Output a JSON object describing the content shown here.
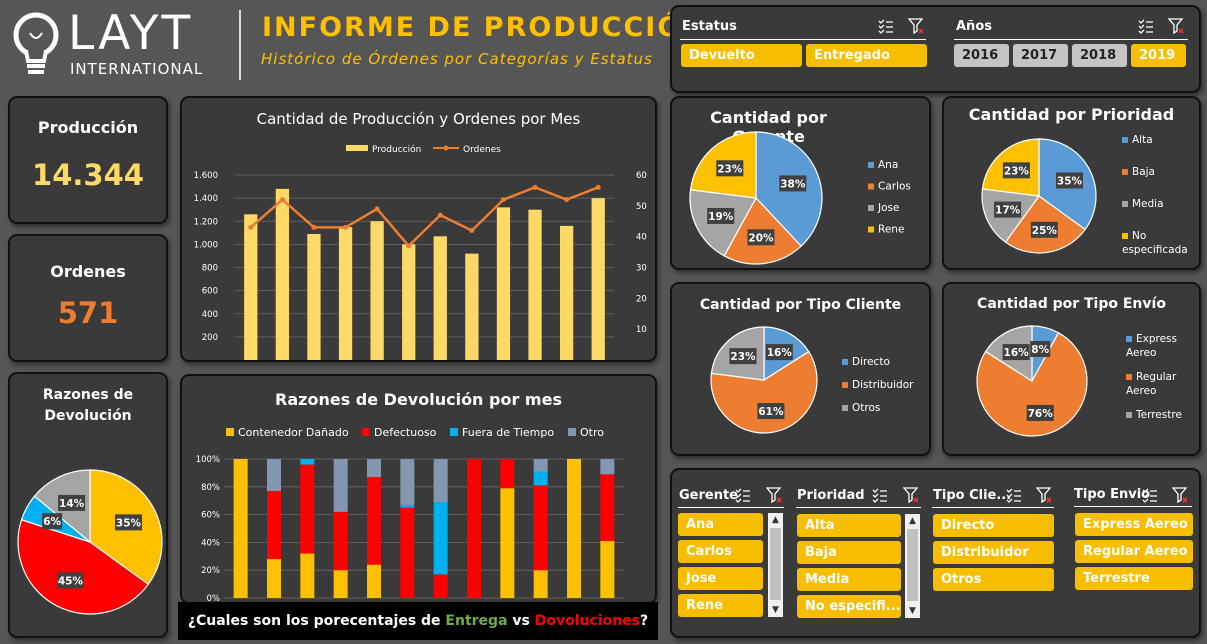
{
  "header": {
    "logo_text": "LAYT",
    "logo_sub": "INTERNATIONAL",
    "title": "INFORME DE PRODUCCIÓN",
    "subtitle": "Histórico de Órdenes por Categorías y Estatus"
  },
  "colors": {
    "yellow": "#ffc000",
    "orange": "#ed7d31",
    "blue": "#5b9bd5",
    "gray": "#a5a5a5",
    "red": "#ff0000",
    "cyan": "#00b0f0",
    "slate": "#8497b0",
    "bar_yellow": "#ffd966",
    "kpi_yellow": "#ffd966",
    "kpi_orange": "#ed7d31"
  },
  "filters": {
    "estatus": {
      "title": "Estatus",
      "items": [
        {
          "label": "Devuelto",
          "on": true
        },
        {
          "label": "Entregado",
          "on": true
        }
      ]
    },
    "anios": {
      "title": "Años",
      "items": [
        {
          "label": "2016",
          "on": false
        },
        {
          "label": "2017",
          "on": false
        },
        {
          "label": "2018",
          "on": false
        },
        {
          "label": "2019",
          "on": true
        }
      ]
    }
  },
  "kpis": {
    "produccion": {
      "label": "Producción",
      "value": "14.344"
    },
    "ordenes": {
      "label": "Ordenes",
      "value": "571"
    }
  },
  "combo_chart": {
    "title": "Cantidad de Producción y Ordenes por Mes",
    "legend_bar": "Producción",
    "legend_line": "Ordenes",
    "y_left_ticks": [
      "1.600",
      "1.400",
      "1.200",
      "1.000",
      "800",
      "600",
      "400",
      "200",
      "-"
    ],
    "y_right_ticks": [
      "60",
      "50",
      "40",
      "30",
      "20",
      "10",
      "-"
    ]
  },
  "chart_data": [
    {
      "type": "bar",
      "title": "Cantidad de Producción y Ordenes por Mes",
      "series": [
        {
          "name": "Producción",
          "values": [
            1260,
            1480,
            1090,
            1150,
            1200,
            1000,
            1070,
            920,
            1320,
            1300,
            1160,
            1400
          ]
        },
        {
          "name": "Ordenes",
          "values": [
            43,
            52,
            43,
            43,
            49,
            37,
            47,
            42,
            52,
            56,
            52,
            56
          ]
        }
      ],
      "ylim_left": [
        0,
        1600
      ],
      "ylim_right": [
        0,
        60
      ]
    },
    {
      "type": "bar",
      "title": "Razones de Devolución por mes",
      "legend": [
        "Contenedor Dañado",
        "Defectuoso",
        "Fuera de Tiempo",
        "Otro"
      ],
      "y_ticks": [
        "100%",
        "80%",
        "60%",
        "40%",
        "20%",
        "0%"
      ],
      "series": [
        {
          "name": "Contenedor Dañado",
          "values": [
            100,
            28,
            32,
            20,
            24,
            0,
            0,
            0,
            79,
            20,
            100,
            41
          ]
        },
        {
          "name": "Defectuoso",
          "values": [
            0,
            49,
            64,
            42,
            63,
            65,
            17,
            100,
            21,
            61,
            0,
            48
          ]
        },
        {
          "name": "Fuera de Tiempo",
          "values": [
            0,
            0,
            4,
            0,
            0,
            2,
            52,
            0,
            0,
            10,
            0,
            0
          ]
        },
        {
          "name": "Otro",
          "values": [
            0,
            23,
            0,
            38,
            13,
            33,
            31,
            0,
            0,
            9,
            0,
            11
          ]
        }
      ],
      "ylim": [
        0,
        100
      ]
    },
    {
      "type": "pie",
      "title": "Razones de Devolución",
      "labels": [
        "35%",
        "45%",
        "6%",
        "14%"
      ],
      "values": [
        35,
        45,
        6,
        14
      ]
    },
    {
      "type": "pie",
      "title": "Cantidad por Gerente",
      "legend": [
        "Ana",
        "Carlos",
        "Jose",
        "Rene"
      ],
      "labels": [
        "38%",
        "20%",
        "19%",
        "23%"
      ],
      "values": [
        38,
        20,
        19,
        23
      ]
    },
    {
      "type": "pie",
      "title": "Cantidad por Prioridad",
      "legend": [
        "Alta",
        "Baja",
        "Media",
        "No especificada"
      ],
      "labels": [
        "35%",
        "25%",
        "17%",
        "23%"
      ],
      "values": [
        35,
        25,
        17,
        23
      ]
    },
    {
      "type": "pie",
      "title": "Cantidad por Tipo Cliente",
      "legend": [
        "Directo",
        "Distribuidor",
        "Otros"
      ],
      "labels": [
        "16%",
        "61%",
        "23%"
      ],
      "values": [
        16,
        61,
        23
      ]
    },
    {
      "type": "pie",
      "title": "Cantidad por Tipo Envío",
      "legend": [
        "Express Aereo",
        "Regular Aereo",
        "Terrestre"
      ],
      "labels": [
        "8%",
        "76%",
        "16%"
      ],
      "values": [
        8,
        76,
        16
      ]
    }
  ],
  "question": {
    "pre": "¿Cuales son los porecentajes de ",
    "entrega": "Entrega",
    "mid": " vs ",
    "devoluciones": "Dovoluciones",
    "post": "?"
  },
  "slicers": {
    "gerente": {
      "title": "Gerente",
      "items": [
        "Ana",
        "Carlos",
        "Jose",
        "Rene"
      ]
    },
    "prioridad": {
      "title": "Prioridad",
      "items": [
        "Alta",
        "Baja",
        "Media",
        "No especifi..."
      ]
    },
    "tipo_cliente": {
      "title": "Tipo Clie...",
      "items": [
        "Directo",
        "Distribuidor",
        "Otros"
      ]
    },
    "tipo_envio": {
      "title": "Tipo Envio",
      "items": [
        "Express Aereo",
        "Regular Aereo",
        "Terrestre"
      ]
    }
  }
}
